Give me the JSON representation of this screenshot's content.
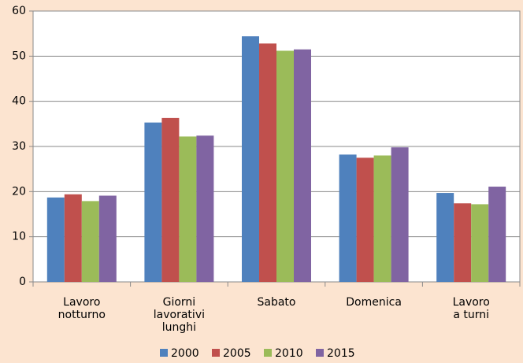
{
  "chart_data": {
    "type": "bar",
    "categories": [
      [
        "Lavoro",
        "notturno"
      ],
      [
        "Giorni",
        "lavorativi",
        "lunghi"
      ],
      [
        "Sabato"
      ],
      [
        "Domenica"
      ],
      [
        "Lavoro",
        "a turni"
      ]
    ],
    "series": [
      {
        "name": "2000",
        "color": "#4f81bd",
        "values": [
          18.7,
          35.3,
          54.4,
          28.2,
          19.7
        ]
      },
      {
        "name": "2005",
        "color": "#c0504d",
        "values": [
          19.4,
          36.3,
          52.8,
          27.5,
          17.4
        ]
      },
      {
        "name": "2010",
        "color": "#9bbb59",
        "values": [
          17.9,
          32.2,
          51.2,
          28.0,
          17.2
        ]
      },
      {
        "name": "2015",
        "color": "#8064a2",
        "values": [
          19.1,
          32.4,
          51.5,
          29.8,
          21.1
        ]
      }
    ],
    "ylim": [
      0,
      60
    ],
    "yticks": [
      0,
      10,
      20,
      30,
      40,
      50,
      60
    ],
    "grid": true,
    "legend": "bottom"
  }
}
